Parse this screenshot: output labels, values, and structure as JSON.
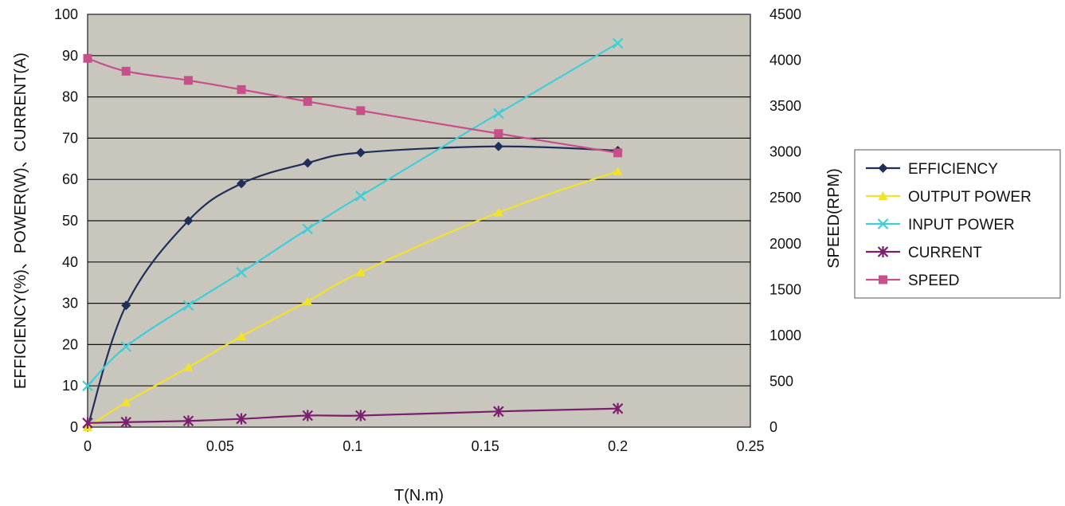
{
  "chart_data": {
    "type": "line",
    "xlabel": "T(N.m)",
    "ylabel_left": "EFFICIENCY(%)、POWER(W)、CURRENT(A)",
    "ylabel_right": "SPEED(RPM)",
    "xlim": [
      0,
      0.25
    ],
    "ylim_left": [
      0,
      100
    ],
    "ylim_right": [
      0,
      4500
    ],
    "x_ticks": [
      "0",
      "0.05",
      "0.1",
      "0.15",
      "0.2",
      "0.25"
    ],
    "y_left_ticks": [
      "0",
      "10",
      "20",
      "30",
      "40",
      "50",
      "60",
      "70",
      "80",
      "90",
      "100"
    ],
    "y_right_ticks": [
      "0",
      "500",
      "1000",
      "1500",
      "2000",
      "2500",
      "3000",
      "3500",
      "4000",
      "4500"
    ],
    "grid": "horizontal",
    "legend_position": "right",
    "series": [
      {
        "name": "EFFICIENCY",
        "axis": "left",
        "color": "#1f2f5a",
        "marker": "diamond",
        "x": [
          0,
          0.0145,
          0.038,
          0.058,
          0.083,
          0.103,
          0.155,
          0.2
        ],
        "y": [
          0,
          29.5,
          50,
          59,
          64,
          66.5,
          68,
          67
        ],
        "smooth": true
      },
      {
        "name": "OUTPUT POWER",
        "axis": "left",
        "color": "#f2e22a",
        "marker": "triangle",
        "x": [
          0,
          0.0145,
          0.038,
          0.058,
          0.083,
          0.103,
          0.155,
          0.2
        ],
        "y": [
          0,
          6,
          14.5,
          22,
          30.5,
          37.5,
          52,
          62
        ],
        "smooth": true
      },
      {
        "name": "INPUT POWER",
        "axis": "left",
        "color": "#3fcdd6",
        "marker": "x",
        "x": [
          0,
          0.0145,
          0.038,
          0.058,
          0.083,
          0.103,
          0.155,
          0.2
        ],
        "y": [
          10,
          19.5,
          29.5,
          37.5,
          48,
          56,
          76,
          93
        ],
        "smooth": true
      },
      {
        "name": "CURRENT",
        "axis": "left",
        "color": "#7a1f6e",
        "marker": "star",
        "x": [
          0,
          0.0145,
          0.038,
          0.058,
          0.083,
          0.103,
          0.155,
          0.2
        ],
        "y": [
          1,
          1.2,
          1.5,
          2,
          2.8,
          2.8,
          3.8,
          4.5
        ],
        "smooth": true
      },
      {
        "name": "SPEED",
        "axis": "right",
        "color": "#c8508a",
        "marker": "square",
        "x": [
          0,
          0.0145,
          0.038,
          0.058,
          0.083,
          0.103,
          0.155,
          0.2
        ],
        "y": [
          4020,
          3880,
          3780,
          3680,
          3550,
          3450,
          3200,
          2990
        ],
        "smooth": true
      }
    ]
  }
}
